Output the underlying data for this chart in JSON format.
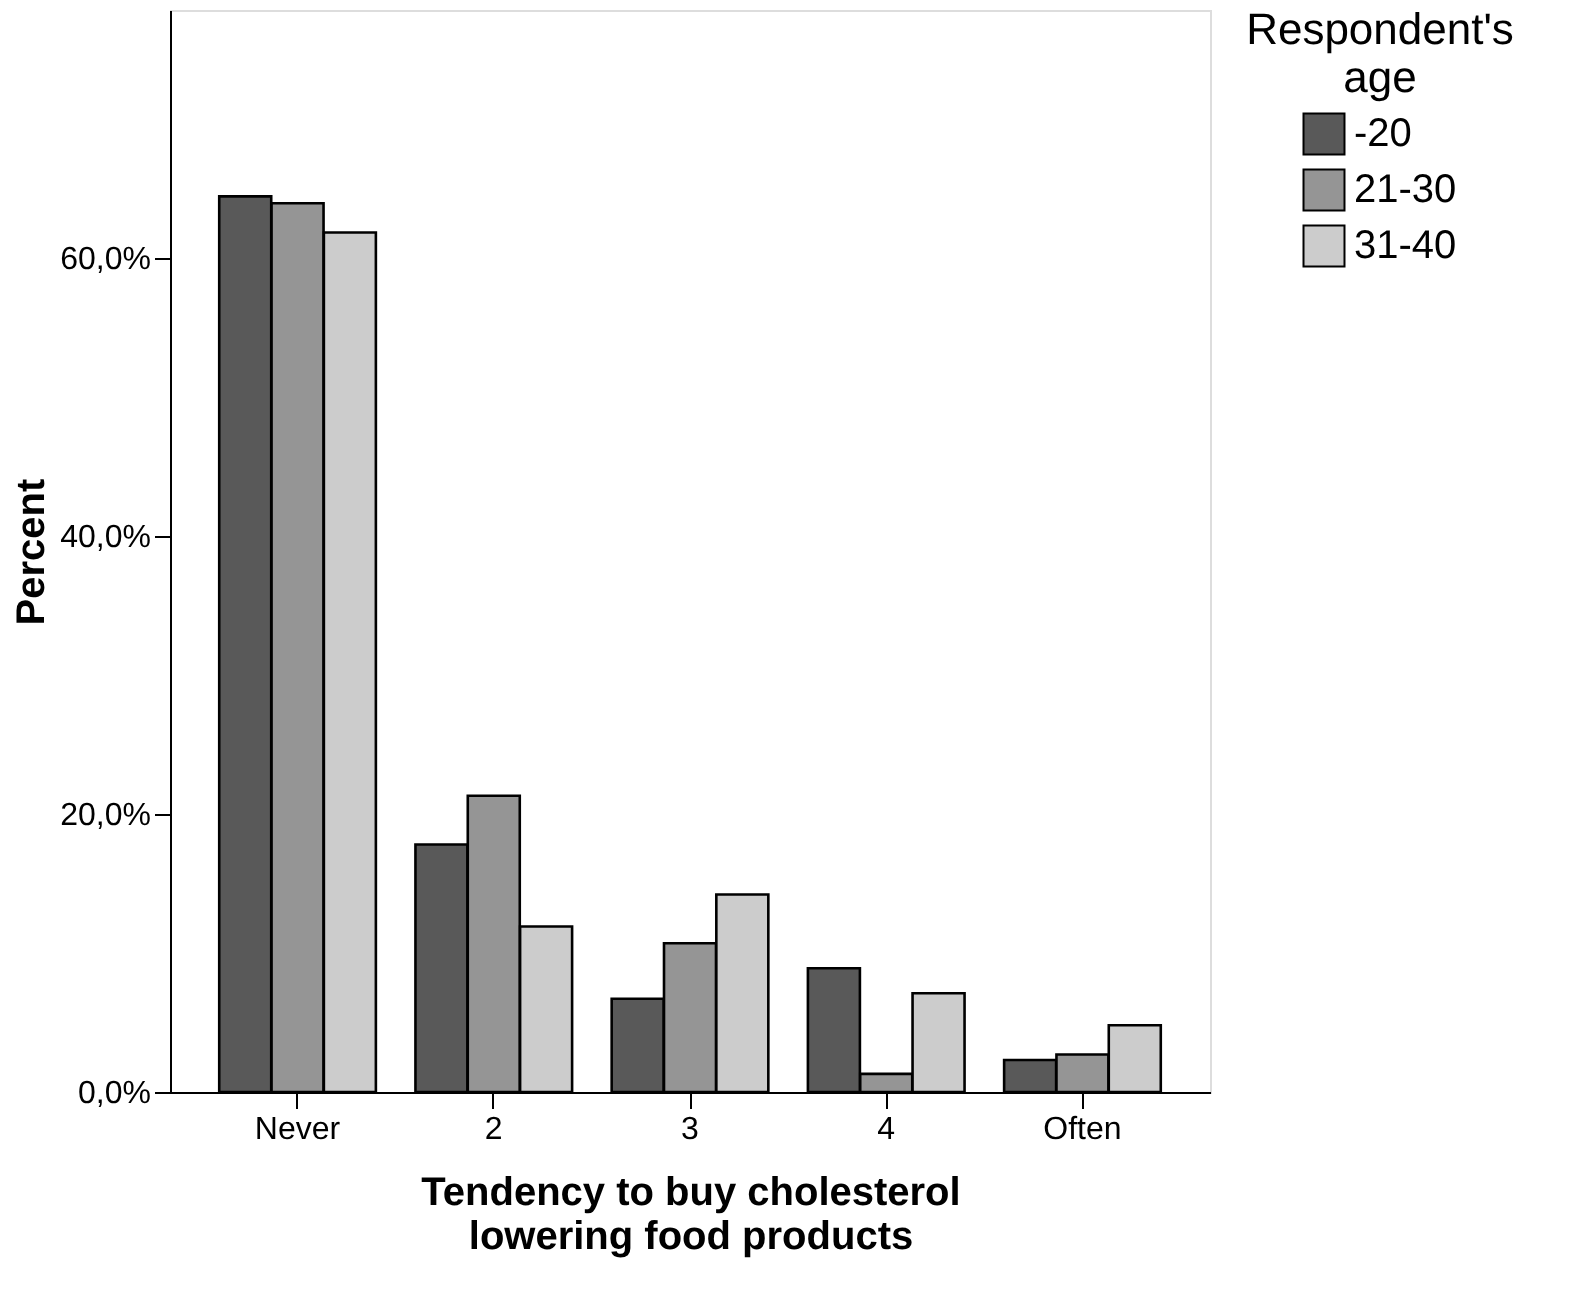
{
  "chart_data": {
    "type": "bar",
    "xlabel": "Tendency to buy cholesterol\nlowering food products",
    "ylabel": "Percent",
    "legend_title": "Respondent's\nage",
    "categories": [
      "Never",
      "2",
      "3",
      "4",
      "Often"
    ],
    "series": [
      {
        "name": "-20",
        "color": "#595959",
        "values": [
          64.4,
          17.8,
          6.7,
          8.9,
          2.3
        ]
      },
      {
        "name": "21-30",
        "color": "#959595",
        "values": [
          63.9,
          21.3,
          10.7,
          1.3,
          2.7
        ]
      },
      {
        "name": "31-40",
        "color": "#cccccc",
        "values": [
          61.8,
          11.9,
          14.2,
          7.1,
          4.8
        ]
      }
    ],
    "ylim": [
      0,
      77.8
    ],
    "yticks": [
      {
        "value": 0,
        "label": "0,0%"
      },
      {
        "value": 20,
        "label": "20,0%"
      },
      {
        "value": 40,
        "label": "40,0%"
      },
      {
        "value": 60,
        "label": "60,0%"
      }
    ],
    "grid": false,
    "legend": "top right"
  }
}
